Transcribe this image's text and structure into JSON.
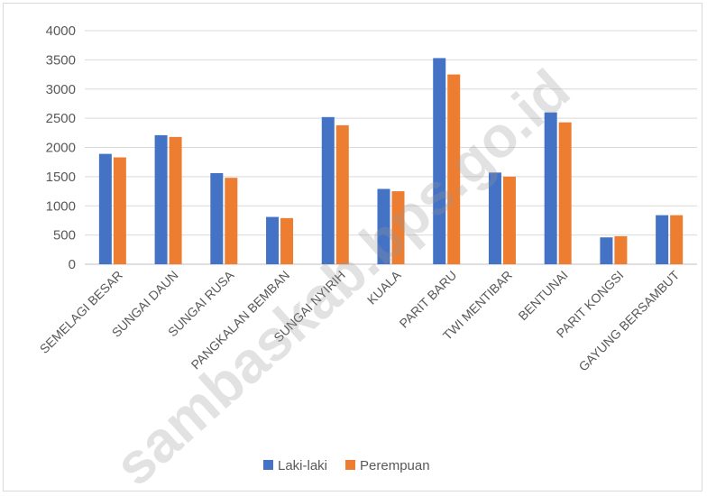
{
  "chart_data": {
    "type": "bar",
    "categories": [
      "SEMELAGI BESAR",
      "SUNGAI DAUN",
      "SUNGAI RUSA",
      "PANGKALAN BEMBAN",
      "SUNGAI NYIRIH",
      "KUALA",
      "PARIT BARU",
      "TWI MENTIBAR",
      "BENTUNAI",
      "PARIT KONGSI",
      "GAYUNG BERSAMBUT"
    ],
    "series": [
      {
        "name": "Laki-laki",
        "color": "#4472c4",
        "values": [
          1890,
          2210,
          1560,
          810,
          2520,
          1290,
          3530,
          1570,
          2600,
          460,
          840
        ]
      },
      {
        "name": "Perempuan",
        "color": "#ed7d31",
        "values": [
          1830,
          2180,
          1480,
          790,
          2380,
          1250,
          3250,
          1500,
          2430,
          480,
          840
        ]
      }
    ],
    "yticks": [
      0,
      500,
      1000,
      1500,
      2000,
      2500,
      3000,
      3500,
      4000
    ],
    "ylim": [
      0,
      4000
    ],
    "grid": true,
    "legend_position": "bottom"
  },
  "watermark": "sambaskab.bps.go.id"
}
